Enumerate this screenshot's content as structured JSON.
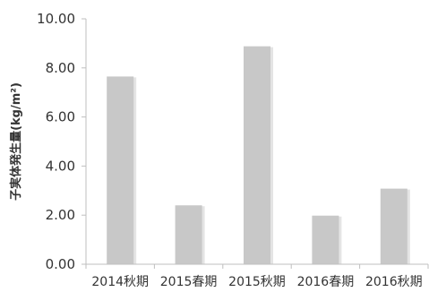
{
  "chart_data": {
    "type": "bar",
    "title": "",
    "xlabel": "",
    "ylabel": "子実体発生量(kg/m²)",
    "categories": [
      "2014秋期",
      "2015春期",
      "2015秋期",
      "2016春期",
      "2016秋期"
    ],
    "values": [
      7.65,
      2.4,
      8.88,
      1.98,
      3.08
    ],
    "ylim": [
      0,
      10
    ],
    "yticks": [
      "0.00",
      "2.00",
      "4.00",
      "6.00",
      "8.00",
      "10.00"
    ],
    "grid": false,
    "legend": "none",
    "colors": {
      "bar_fill": "#c8c8c8",
      "bar_shadow": "#e4e4e4",
      "axis": "#bfbfbf",
      "text": "#333333"
    }
  }
}
